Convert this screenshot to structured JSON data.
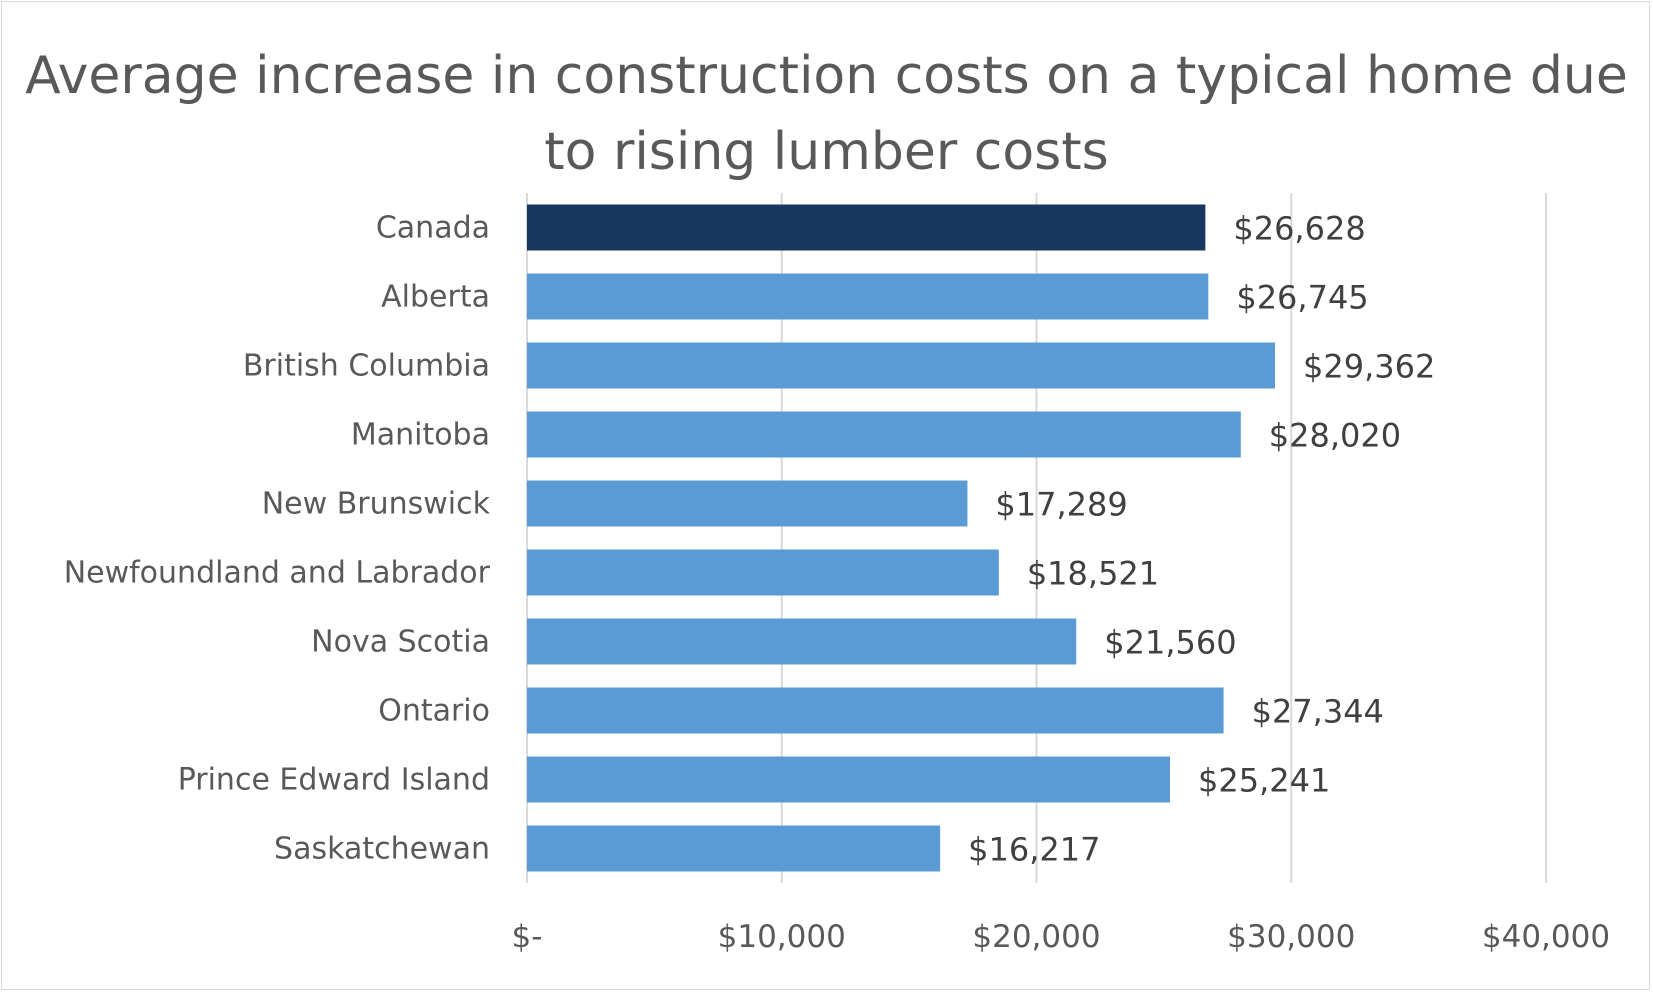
{
  "chart_data": {
    "type": "bar",
    "orientation": "horizontal",
    "title": "Average increase in construction costs on a typical home due to rising lumber costs",
    "categories": [
      "Canada",
      "Alberta",
      "British Columbia",
      "Manitoba",
      "New Brunswick",
      "Newfoundland and Labrador",
      "Nova Scotia",
      "Ontario",
      "Prince Edward Island",
      "Saskatchewan"
    ],
    "values": [
      26628,
      26745,
      29362,
      28020,
      17289,
      18521,
      21560,
      27344,
      25241,
      16217
    ],
    "value_labels": [
      "$26,628",
      "$26,745",
      "$29,362",
      "$28,020",
      "$17,289",
      "$18,521",
      "$21,560",
      "$27,344",
      "$25,241",
      "$16,217"
    ],
    "highlight_category": "Canada",
    "xlim": [
      0,
      40000
    ],
    "x_ticks": [
      0,
      10000,
      20000,
      30000,
      40000
    ],
    "x_tick_labels": [
      "$-",
      "$10,000",
      "$20,000",
      "$30,000",
      "$40,000"
    ],
    "xlabel": "",
    "ylabel": "",
    "grid": "vertical",
    "legend": "none",
    "colors": {
      "highlight": "#17375e",
      "bars": "#5b9bd5",
      "grid": "#d9d9d9",
      "text": "#595959",
      "value_text": "#404040"
    }
  }
}
